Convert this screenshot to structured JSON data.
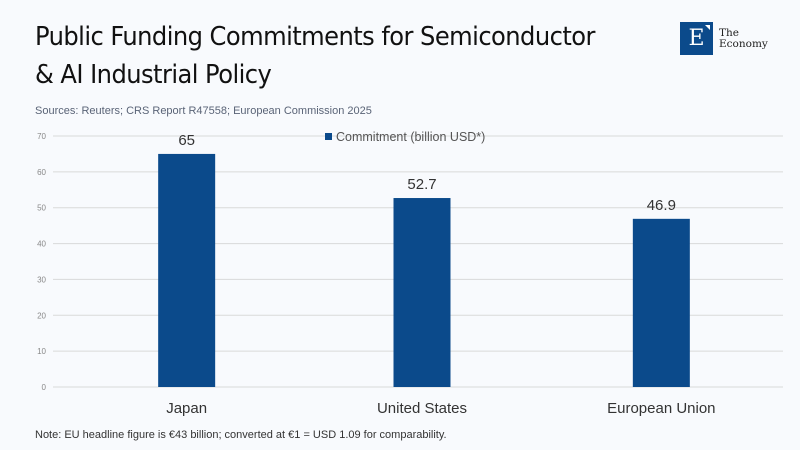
{
  "header": {
    "title_line1": "Public Funding Commitments for Semiconductor",
    "title_line2": "& AI Industrial Policy",
    "sources": "Sources: Reuters; CRS Report R47558; European Commission 2025"
  },
  "logo": {
    "letter": "E",
    "line1": "The",
    "line2": "Economy",
    "color": "#0b4a8b"
  },
  "footer": {
    "note": "Note: EU headline figure is €43 billion; converted at €1 = USD 1.09 for comparability."
  },
  "chart_data": {
    "type": "bar",
    "categories": [
      "Japan",
      "United States",
      "European Union"
    ],
    "series": [
      {
        "name": "Commitment (billion USD*)",
        "values": [
          65,
          52.7,
          46.9
        ],
        "color": "#0b4a8b"
      }
    ],
    "data_labels": [
      "65",
      "52.7",
      "46.9"
    ],
    "title": "Public Funding Commitments for Semiconductor & AI Industrial Policy",
    "xlabel": "",
    "ylabel": "",
    "ylim": [
      0,
      70
    ],
    "yticks": [
      0,
      10,
      20,
      30,
      40,
      50,
      60,
      70
    ],
    "grid": true,
    "legend_position": "top-center"
  }
}
